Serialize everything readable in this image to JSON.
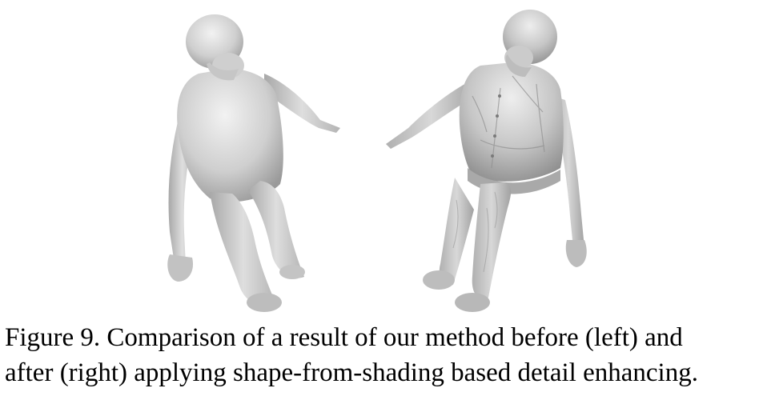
{
  "figure": {
    "panels": [
      {
        "id": "left",
        "variant": "before"
      },
      {
        "id": "right",
        "variant": "after"
      }
    ],
    "colors": {
      "mesh_light": "#e8e8e8",
      "mesh_mid": "#bdbdbd",
      "mesh_dark": "#8a8a8a"
    }
  },
  "caption": {
    "line1": "Figure 9. Comparison of a result of our method before (left) and",
    "line2": "after (right) applying shape-from-shading based detail enhancing."
  }
}
